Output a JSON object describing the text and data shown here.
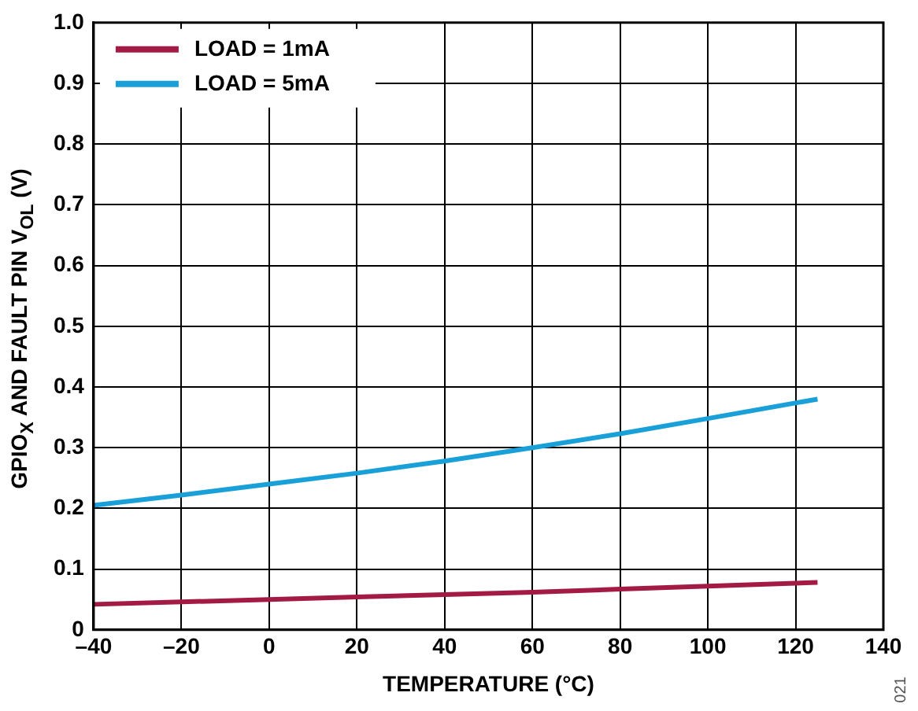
{
  "chart_data": {
    "type": "line",
    "xlabel": "TEMPERATURE (°C)",
    "ylabel": "GPIO$_{X}$ AND FAULT PIN V$_{OL}$ (V)",
    "x": [
      -40,
      -20,
      0,
      20,
      40,
      60,
      80,
      100,
      125
    ],
    "series": [
      {
        "name": "LOAD = 1mA",
        "color": "#a31a45",
        "values": [
          0.042,
          0.046,
          0.05,
          0.054,
          0.058,
          0.062,
          0.067,
          0.072,
          0.078
        ]
      },
      {
        "name": "LOAD = 5mA",
        "color": "#1aa0d8",
        "values": [
          0.205,
          0.222,
          0.24,
          0.258,
          0.278,
          0.3,
          0.323,
          0.348,
          0.38
        ]
      }
    ],
    "xlim": [
      -40,
      140
    ],
    "xticks": [
      {
        "value": -40,
        "label": "–40"
      },
      {
        "value": -20,
        "label": "–20"
      },
      0,
      20,
      40,
      60,
      80,
      100,
      120,
      140
    ],
    "ylim": [
      0,
      1
    ],
    "yticks": [
      0,
      0.1,
      0.2,
      0.3,
      0.4,
      0.5,
      0.6,
      0.7,
      0.8,
      0.9,
      {
        "value": 1,
        "label": "1.0"
      }
    ],
    "grid": true,
    "legend": "top left",
    "marker": "none",
    "line_style": "solid",
    "annotations": [
      "021"
    ]
  }
}
